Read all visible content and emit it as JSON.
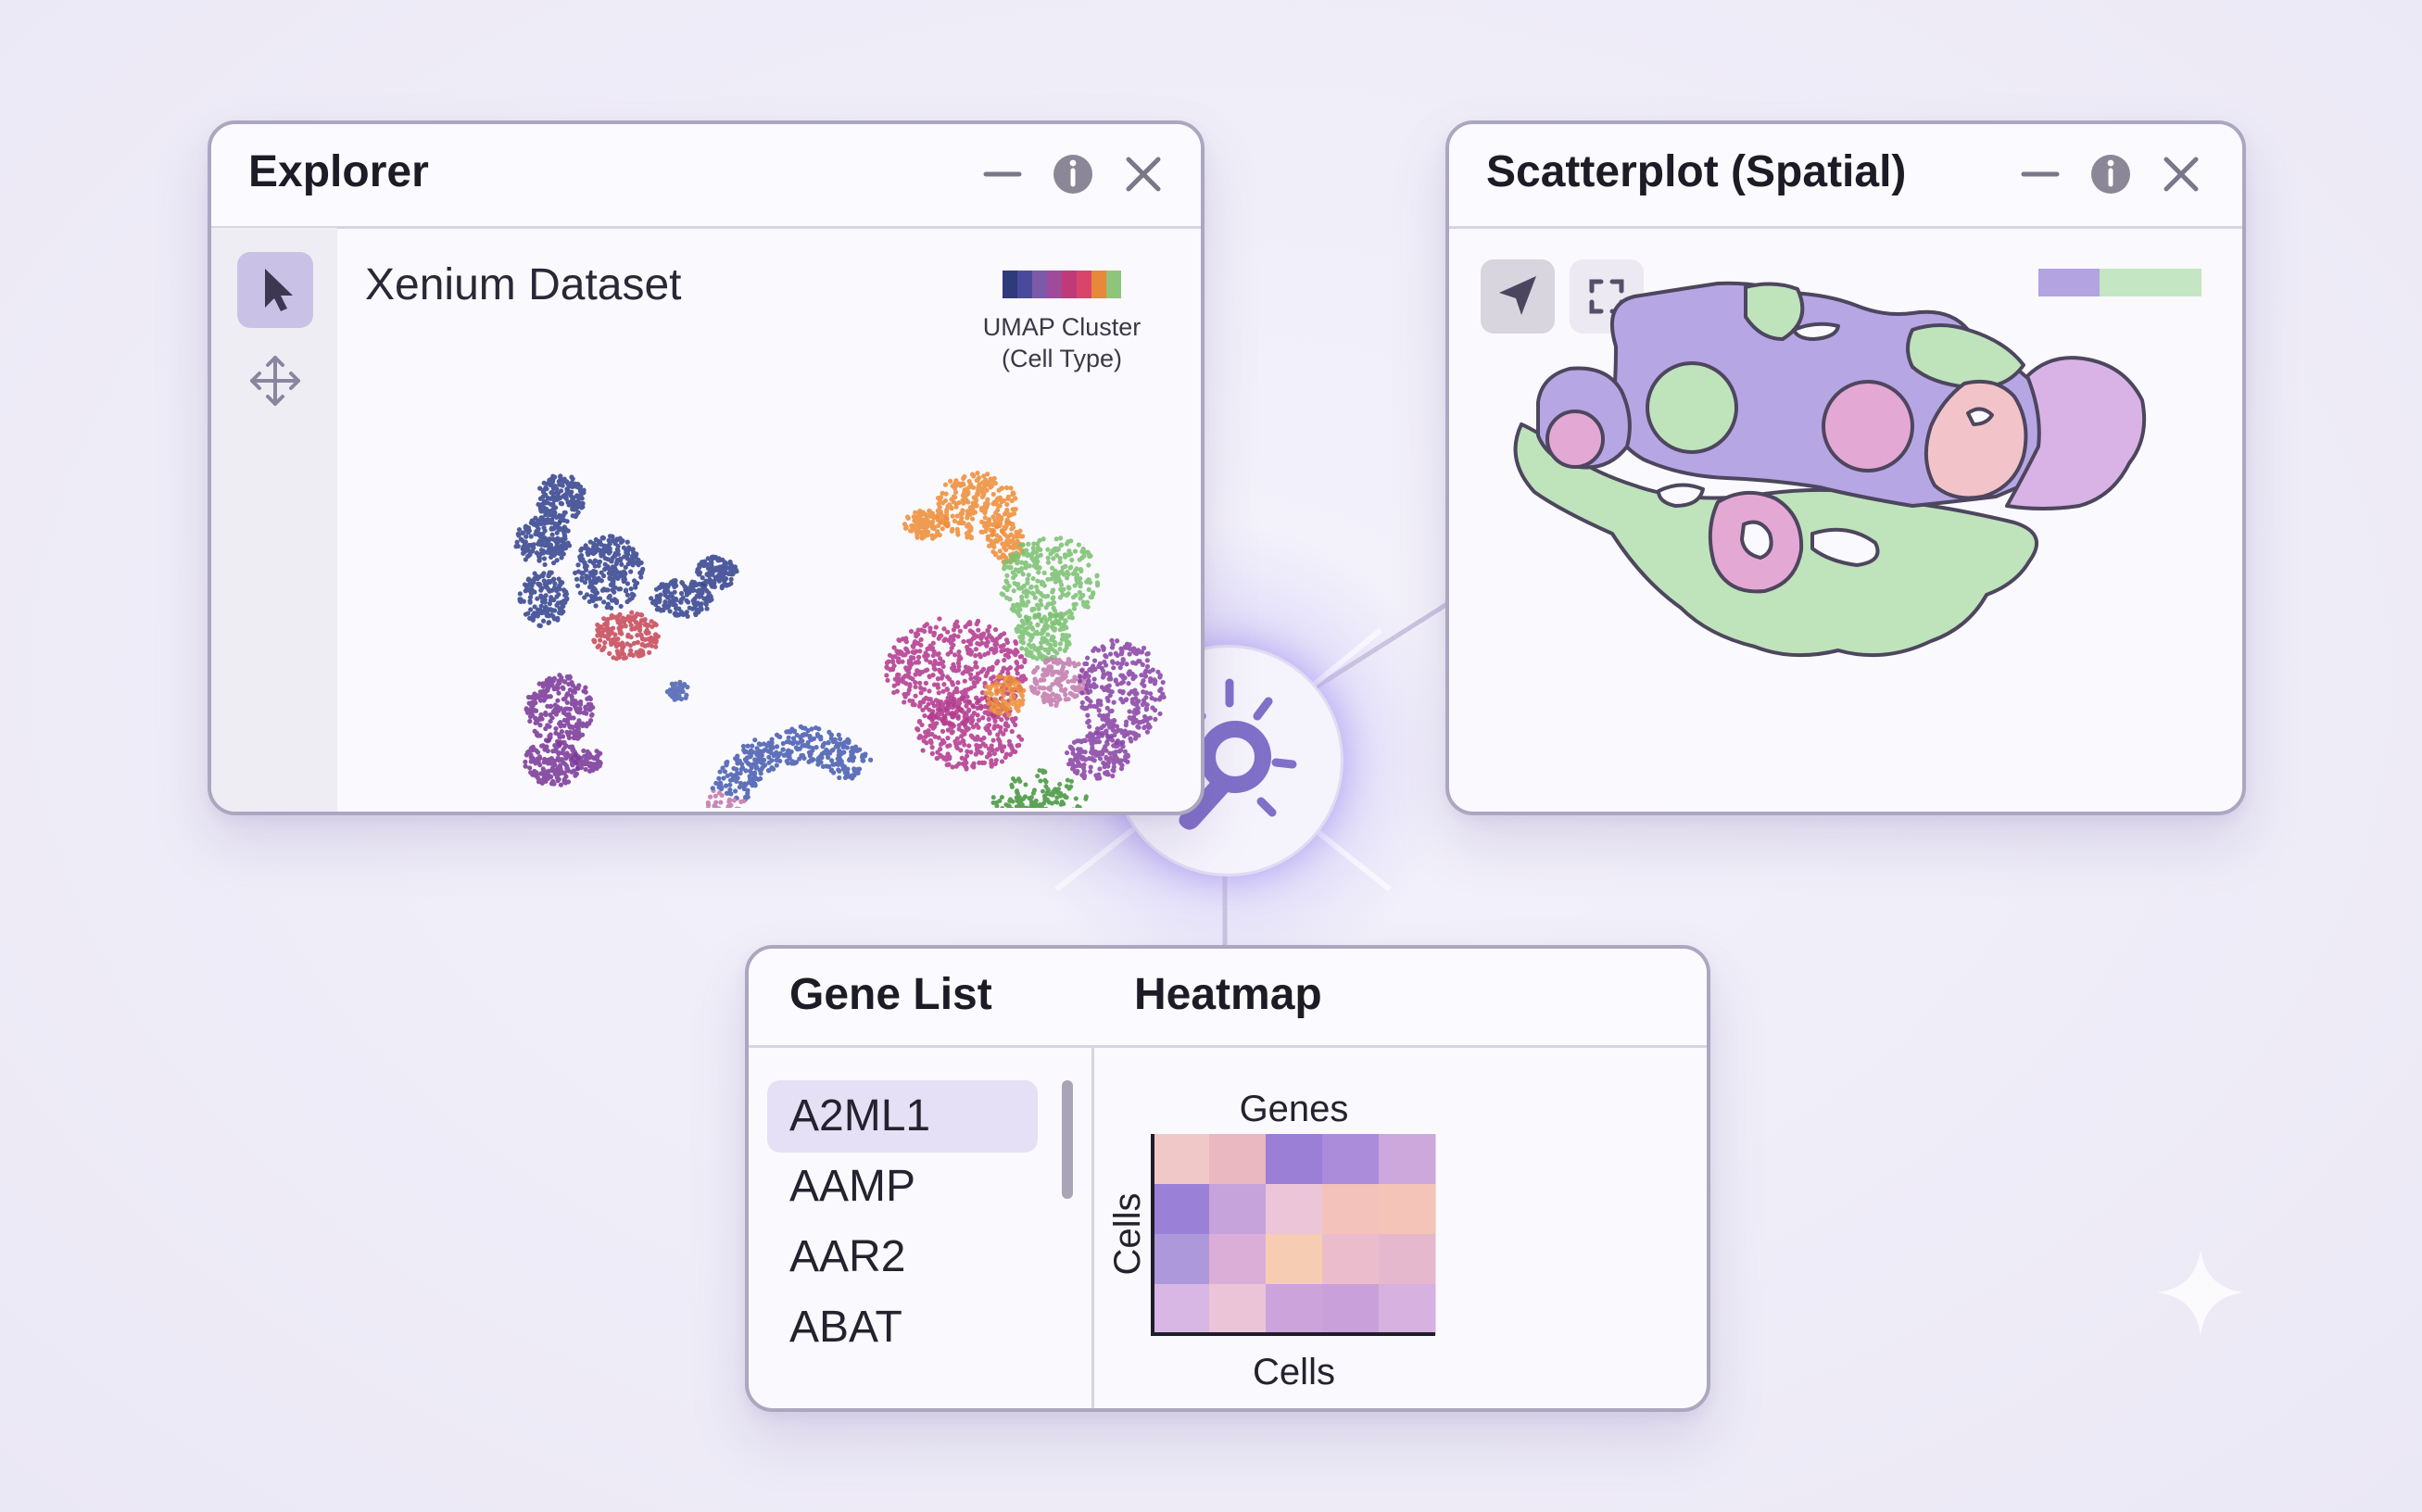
{
  "explorer": {
    "title": "Explorer",
    "dataset_title": "Xenium Dataset",
    "legend_line1": "UMAP Cluster",
    "legend_line2": "(Cell Type)",
    "legend_colors": [
      "#2e3a7a",
      "#4a4a9a",
      "#7b5aa8",
      "#a04a9a",
      "#c03a7a",
      "#d9456a",
      "#e8883a",
      "#8fc47a"
    ],
    "cluster_colors": {
      "navy": "#37468f",
      "orange": "#ee8f3a",
      "green": "#7cc273",
      "magenta": "#b43c8f",
      "purple": "#8a46a6",
      "violet": "#7b3a9a",
      "rose": "#c47cae",
      "blue": "#4f63b3",
      "forest": "#4d9a45",
      "red": "#c84a5a"
    }
  },
  "scatterplot": {
    "title": "Scatterplot (Spatial)",
    "legend_colors": [
      "#b3a3e0",
      "#c5e6c2"
    ],
    "region_colors": {
      "lavender": "#b7a6e4",
      "green": "#bfe3bb",
      "pink": "#e4a8d4",
      "peach": "#f2c4c9",
      "lilac": "#d9b3e6"
    }
  },
  "gene_list": {
    "title": "Gene List",
    "items": [
      {
        "label": "A2ML1",
        "selected": true
      },
      {
        "label": "AAMP",
        "selected": false
      },
      {
        "label": "AAR2",
        "selected": false
      },
      {
        "label": "ABAT",
        "selected": false
      }
    ]
  },
  "heatmap": {
    "title": "Heatmap",
    "top_label": "Genes",
    "y_label": "Cells",
    "x_label": "Cells",
    "cells": [
      [
        "#f0c8c8",
        "#eab8c0",
        "#9b7ed6",
        "#ab8cdb",
        "#cca8dc"
      ],
      [
        "#9b80d8",
        "#c7a3dc",
        "#ecc6d8",
        "#f3c2ba",
        "#f4c4b8"
      ],
      [
        "#ad98dc",
        "#dbaed8",
        "#f6cdb2",
        "#ebbccc",
        "#e6b8cd"
      ],
      [
        "#d9b7e4",
        "#ebc4d8",
        "#cda3dc",
        "#caa0da",
        "#d7b2e0"
      ]
    ]
  }
}
